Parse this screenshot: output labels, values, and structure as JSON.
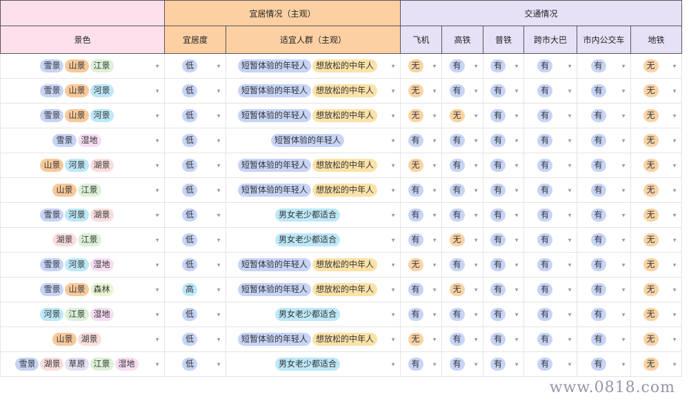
{
  "header": {
    "group_scenery": "",
    "group_livability": "宜居情况（主观）",
    "group_transport": "交通情况",
    "columns": [
      "景色",
      "宜居度",
      "适宜人群（主观）",
      "飞机",
      "高铁",
      "普铁",
      "跨市大巴",
      "市内公交车",
      "地铁"
    ]
  },
  "tag_colors": {
    "雪景": "#c7d4f6",
    "山景": "#f8c99b",
    "江景": "#dcf1d8",
    "河景": "#bde8f8",
    "湿地": "#f6def2",
    "湖景": "#fadede",
    "森林": "#e9f5d2",
    "草原": "#e5e1f6",
    "低": "#c7d4f6",
    "高": "#bde8f8",
    "短暂体验的年轻人": "#c7d4f6",
    "想放松的中年人": "#fbe2a8",
    "男女老少都适合": "#bde8f8",
    "有": "#c7d4f6",
    "无": "#f8d3a5"
  },
  "rows": [
    {
      "scenery": [
        "雪景",
        "山景",
        "江景"
      ],
      "livability": "低",
      "people": [
        "短暂体验的年轻人",
        "想放松的中年人"
      ],
      "transport": [
        "无",
        "有",
        "有",
        "有",
        "有",
        "无"
      ]
    },
    {
      "scenery": [
        "雪景",
        "山景",
        "河景"
      ],
      "livability": "低",
      "people": [
        "短暂体验的年轻人",
        "想放松的中年人"
      ],
      "transport": [
        "无",
        "有",
        "有",
        "有",
        "有",
        "无"
      ]
    },
    {
      "scenery": [
        "雪景",
        "山景",
        "河景"
      ],
      "livability": "低",
      "people": [
        "短暂体验的年轻人",
        "想放松的中年人"
      ],
      "transport": [
        "无",
        "无",
        "有",
        "有",
        "有",
        "无"
      ]
    },
    {
      "scenery": [
        "雪景",
        "湿地"
      ],
      "livability": "低",
      "people": [
        "短暂体验的年轻人"
      ],
      "transport": [
        "有",
        "有",
        "有",
        "有",
        "有",
        "无"
      ]
    },
    {
      "scenery": [
        "山景",
        "河景",
        "湖景"
      ],
      "livability": "低",
      "people": [
        "短暂体验的年轻人",
        "想放松的中年人"
      ],
      "transport": [
        "无",
        "有",
        "有",
        "有",
        "有",
        "无"
      ]
    },
    {
      "scenery": [
        "山景",
        "江景"
      ],
      "livability": "低",
      "people": [
        "短暂体验的年轻人",
        "想放松的中年人"
      ],
      "transport": [
        "有",
        "有",
        "有",
        "有",
        "有",
        "无"
      ]
    },
    {
      "scenery": [
        "雪景",
        "河景",
        "湖景"
      ],
      "livability": "低",
      "people": [
        "男女老少都适合"
      ],
      "transport": [
        "有",
        "有",
        "有",
        "有",
        "有",
        "无"
      ]
    },
    {
      "scenery": [
        "湖景",
        "江景"
      ],
      "livability": "低",
      "people": [
        "男女老少都适合"
      ],
      "transport": [
        "有",
        "无",
        "有",
        "有",
        "有",
        "无"
      ]
    },
    {
      "scenery": [
        "雪景",
        "河景",
        "湿地"
      ],
      "livability": "低",
      "people": [
        "短暂体验的年轻人",
        "想放松的中年人"
      ],
      "transport": [
        "无",
        "有",
        "有",
        "有",
        "有",
        "无"
      ]
    },
    {
      "scenery": [
        "雪景",
        "山景",
        "森林"
      ],
      "livability": "高",
      "people": [
        "短暂体验的年轻人",
        "想放松的中年人"
      ],
      "transport": [
        "有",
        "无",
        "有",
        "有",
        "有",
        "无"
      ]
    },
    {
      "scenery": [
        "河景",
        "江景",
        "湿地"
      ],
      "livability": "低",
      "people": [
        "男女老少都适合"
      ],
      "transport": [
        "有",
        "有",
        "有",
        "有",
        "有",
        "无"
      ]
    },
    {
      "scenery": [
        "山景",
        "湖景"
      ],
      "livability": "低",
      "people": [
        "短暂体验的年轻人",
        "想放松的中年人"
      ],
      "transport": [
        "无",
        "有",
        "有",
        "有",
        "有",
        "无"
      ]
    },
    {
      "scenery": [
        "雪景",
        "湖景",
        "草原",
        "江景",
        "湿地"
      ],
      "livability": "低",
      "people": [
        "男女老少都适合"
      ],
      "transport": [
        "有",
        "有",
        "有",
        "有",
        "有",
        "无"
      ]
    }
  ],
  "watermark": "www.0818.com"
}
